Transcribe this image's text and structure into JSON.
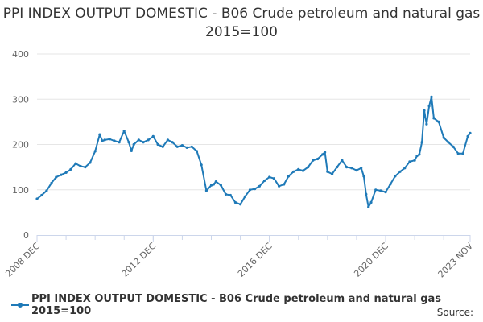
{
  "colors": {
    "series": "#1f7ab8",
    "grid": "#e6e6e6",
    "axis": "#ccd6eb"
  },
  "source_label": "Source:",
  "chart_data": {
    "type": "line",
    "title": "PPI INDEX OUTPUT DOMESTIC - B06 Crude petroleum and natural gas 2015=100",
    "xlabel": "",
    "ylabel": "",
    "xlim": [
      2008.92,
      2023.83
    ],
    "ylim": [
      0,
      400
    ],
    "yticks": [
      0,
      100,
      200,
      300,
      400
    ],
    "xticks": [
      {
        "x": 2008.92,
        "label": "2008 DEC"
      },
      {
        "x": 2012.92,
        "label": "2012 DEC"
      },
      {
        "x": 2016.92,
        "label": "2016 DEC"
      },
      {
        "x": 2020.92,
        "label": "2020 DEC"
      },
      {
        "x": 2023.83,
        "label": "2023 NOV"
      }
    ],
    "grid": true,
    "legend_position": "bottom",
    "series": [
      {
        "name": "PPI INDEX OUTPUT DOMESTIC - B06 Crude petroleum and natural gas 2015=100",
        "x": [
          2008.92,
          2009.08,
          2009.25,
          2009.42,
          2009.58,
          2009.75,
          2009.92,
          2010.08,
          2010.25,
          2010.42,
          2010.58,
          2010.75,
          2010.92,
          2011.08,
          2011.17,
          2011.25,
          2011.42,
          2011.58,
          2011.75,
          2011.92,
          2012.08,
          2012.17,
          2012.25,
          2012.42,
          2012.58,
          2012.75,
          2012.92,
          2013.08,
          2013.25,
          2013.42,
          2013.58,
          2013.75,
          2013.92,
          2014.08,
          2014.25,
          2014.42,
          2014.58,
          2014.75,
          2014.92,
          2015.0,
          2015.08,
          2015.25,
          2015.42,
          2015.58,
          2015.75,
          2015.92,
          2016.08,
          2016.25,
          2016.42,
          2016.58,
          2016.75,
          2016.92,
          2017.08,
          2017.25,
          2017.42,
          2017.58,
          2017.75,
          2017.92,
          2018.08,
          2018.25,
          2018.42,
          2018.58,
          2018.75,
          2018.83,
          2018.92,
          2019.08,
          2019.25,
          2019.42,
          2019.58,
          2019.75,
          2019.92,
          2020.08,
          2020.17,
          2020.25,
          2020.33,
          2020.42,
          2020.58,
          2020.75,
          2020.92,
          2021.08,
          2021.25,
          2021.42,
          2021.58,
          2021.75,
          2021.92,
          2022.0,
          2022.08,
          2022.17,
          2022.25,
          2022.33,
          2022.42,
          2022.5,
          2022.58,
          2022.75,
          2022.92,
          2023.08,
          2023.25,
          2023.42,
          2023.58,
          2023.75,
          2023.83
        ],
        "values": [
          80,
          88,
          98,
          115,
          128,
          133,
          138,
          145,
          158,
          152,
          150,
          160,
          185,
          222,
          208,
          210,
          212,
          208,
          205,
          230,
          205,
          186,
          200,
          210,
          205,
          210,
          218,
          200,
          195,
          210,
          205,
          195,
          198,
          193,
          195,
          185,
          155,
          98,
          110,
          112,
          118,
          110,
          90,
          88,
          72,
          68,
          85,
          100,
          102,
          108,
          120,
          128,
          125,
          108,
          112,
          130,
          140,
          145,
          142,
          150,
          165,
          168,
          178,
          183,
          140,
          135,
          150,
          165,
          150,
          148,
          143,
          148,
          130,
          90,
          62,
          72,
          100,
          98,
          95,
          112,
          130,
          140,
          148,
          162,
          165,
          175,
          178,
          205,
          275,
          245,
          285,
          305,
          258,
          250,
          215,
          205,
          195,
          180,
          180,
          218,
          225
        ]
      }
    ]
  }
}
